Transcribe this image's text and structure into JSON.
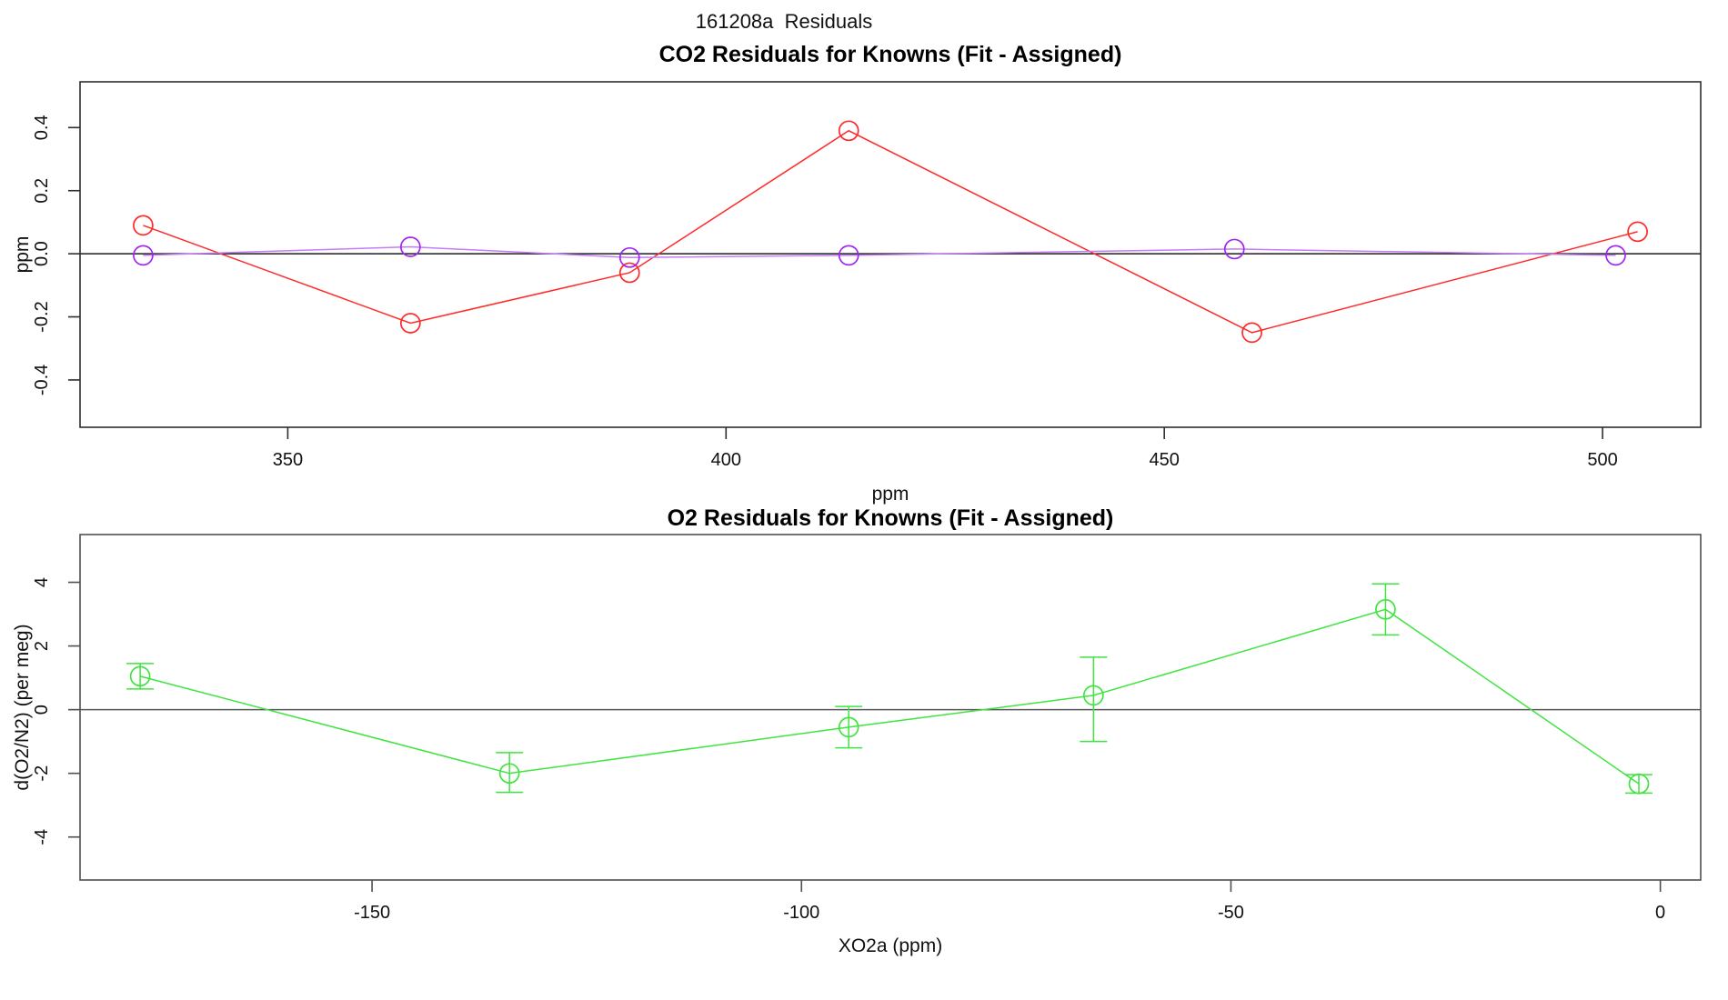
{
  "page": {
    "title": "161208a  Residuals",
    "background": "#ffffff"
  },
  "chart_data": [
    {
      "type": "line",
      "title": "CO2 Residuals for Knowns (Fit - Assigned)",
      "xlabel": "ppm",
      "ylabel": "ppm",
      "xlim": [
        326.3,
        511.2
      ],
      "ylim": [
        -0.55,
        0.545
      ],
      "xticks": [
        350,
        400,
        450,
        500
      ],
      "xtick_labels": [
        "350",
        "400",
        "450",
        "500"
      ],
      "yticks": [
        0.4,
        0.2,
        0.0,
        -0.2,
        -0.4
      ],
      "ytick_labels": [
        "0.4",
        "0.2",
        "0.0",
        "-0.2",
        "-0.4"
      ],
      "grid": false,
      "legend": "none",
      "zero_line": 0,
      "zero_line_color": "#1c1c1c",
      "box_color": "#2e2e2e",
      "series": [
        {
          "name": "co2-residual-red",
          "marker": "open-circle",
          "line_color": "#ff2a2a",
          "marker_color": "#ff2a2a",
          "points": [
            [
              333.5,
              0.09
            ],
            [
              364,
              -0.22
            ],
            [
              389,
              -0.06
            ],
            [
              414,
              0.39
            ],
            [
              460,
              -0.25
            ],
            [
              504,
              0.07
            ]
          ]
        },
        {
          "name": "co2-residual-purple",
          "marker": "open-circle",
          "line_color": "#c77cf7",
          "marker_color": "#a125f0",
          "points": [
            [
              333.5,
              -0.005
            ],
            [
              364,
              0.022
            ],
            [
              389,
              -0.012
            ],
            [
              414,
              -0.005
            ],
            [
              458,
              0.015
            ],
            [
              501.5,
              -0.005
            ]
          ]
        }
      ]
    },
    {
      "type": "line",
      "title": "O2 Residuals for Knowns (Fit - Assigned)",
      "xlabel": "XO2a (ppm)",
      "ylabel": "d(O2/N2) (per meg)",
      "xlim": [
        -184,
        4.7
      ],
      "ylim": [
        -5.35,
        5.5
      ],
      "xticks": [
        -150,
        -100,
        -50,
        0
      ],
      "xtick_labels": [
        "-150",
        "-100",
        "-50",
        "0"
      ],
      "yticks": [
        4,
        2,
        0,
        -2,
        -4
      ],
      "ytick_labels": [
        "4",
        "2",
        "0",
        "-2",
        "-4"
      ],
      "grid": false,
      "legend": "none",
      "zero_line": 0,
      "zero_line_color": "#585858",
      "box_color": "#4f4f4f",
      "series": [
        {
          "name": "o2-residual-green",
          "marker": "open-circle",
          "line_color": "#3fe43f",
          "marker_color": "#3fe43f",
          "error_bars": true,
          "points": [
            {
              "x": -177,
              "y": 1.05,
              "lo": 0.65,
              "hi": 1.45
            },
            {
              "x": -134,
              "y": -2.0,
              "lo": -2.6,
              "hi": -1.35
            },
            {
              "x": -94.5,
              "y": -0.55,
              "lo": -1.2,
              "hi": 0.1
            },
            {
              "x": -66,
              "y": 0.45,
              "lo": -1.0,
              "hi": 1.65
            },
            {
              "x": -32,
              "y": 3.15,
              "lo": 2.35,
              "hi": 3.95
            },
            {
              "x": -2.5,
              "y": -2.33,
              "lo": -2.62,
              "hi": -2.04
            }
          ]
        }
      ]
    }
  ]
}
